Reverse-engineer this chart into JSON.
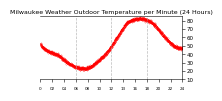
{
  "title": "Milwaukee Weather Outdoor Temperature per Minute (24 Hours)",
  "background_color": "#ffffff",
  "line_color": "#ff0000",
  "grid_color": "#aaaaaa",
  "ylabel_color": "#000000",
  "ylim": [
    10,
    85
  ],
  "yticks": [
    10,
    20,
    30,
    40,
    50,
    60,
    70,
    80
  ],
  "num_points": 1440,
  "temp_profile": [
    52,
    51,
    50,
    49,
    49,
    48,
    47,
    47,
    46,
    46,
    45,
    45,
    44,
    44,
    44,
    43,
    43,
    43,
    42,
    42,
    42,
    42,
    41,
    41,
    41,
    41,
    40,
    40,
    40,
    40,
    39,
    39,
    39,
    38,
    38,
    37,
    37,
    36,
    36,
    35,
    35,
    34,
    34,
    33,
    33,
    32,
    32,
    31,
    31,
    30,
    30,
    29,
    29,
    28,
    28,
    28,
    27,
    27,
    27,
    26,
    26,
    26,
    25,
    25,
    25,
    25,
    24,
    24,
    24,
    24,
    24,
    23,
    23,
    23,
    23,
    23,
    23,
    23,
    23,
    23,
    23,
    23,
    23,
    23,
    23,
    23,
    24,
    24,
    24,
    24,
    25,
    25,
    25,
    26,
    26,
    27,
    27,
    28,
    28,
    29,
    29,
    30,
    30,
    31,
    31,
    32,
    32,
    33,
    33,
    34,
    35,
    35,
    36,
    36,
    37,
    38,
    38,
    39,
    40,
    40,
    41,
    42,
    43,
    43,
    44,
    45,
    46,
    47,
    48,
    49,
    50,
    51,
    52,
    53,
    54,
    55,
    56,
    57,
    58,
    59,
    60,
    61,
    62,
    63,
    64,
    65,
    66,
    67,
    68,
    69,
    70,
    71,
    72,
    73,
    74,
    75,
    76,
    76,
    77,
    77,
    78,
    78,
    79,
    79,
    79,
    80,
    80,
    80,
    81,
    81,
    81,
    81,
    81,
    81,
    82,
    82,
    82,
    82,
    82,
    82,
    82,
    82,
    82,
    82,
    82,
    82,
    82,
    82,
    82,
    82,
    81,
    81,
    81,
    81,
    81,
    80,
    80,
    80,
    79,
    79,
    79,
    78,
    78,
    77,
    77,
    76,
    76,
    75,
    75,
    74,
    73,
    73,
    72,
    71,
    70,
    70,
    69,
    68,
    67,
    66,
    65,
    65,
    64,
    63,
    62,
    62,
    61,
    60,
    59,
    59,
    58,
    57,
    57,
    56,
    55,
    55,
    54,
    53,
    53,
    52,
    52,
    51,
    51,
    50,
    50,
    49,
    49,
    49,
    48,
    48,
    48,
    47,
    47,
    47,
    47,
    47,
    47,
    47,
    47,
    47
  ],
  "vlines_x": [
    0.25,
    0.5,
    0.75
  ],
  "tick_fontsize": 4,
  "title_fontsize": 4.5
}
